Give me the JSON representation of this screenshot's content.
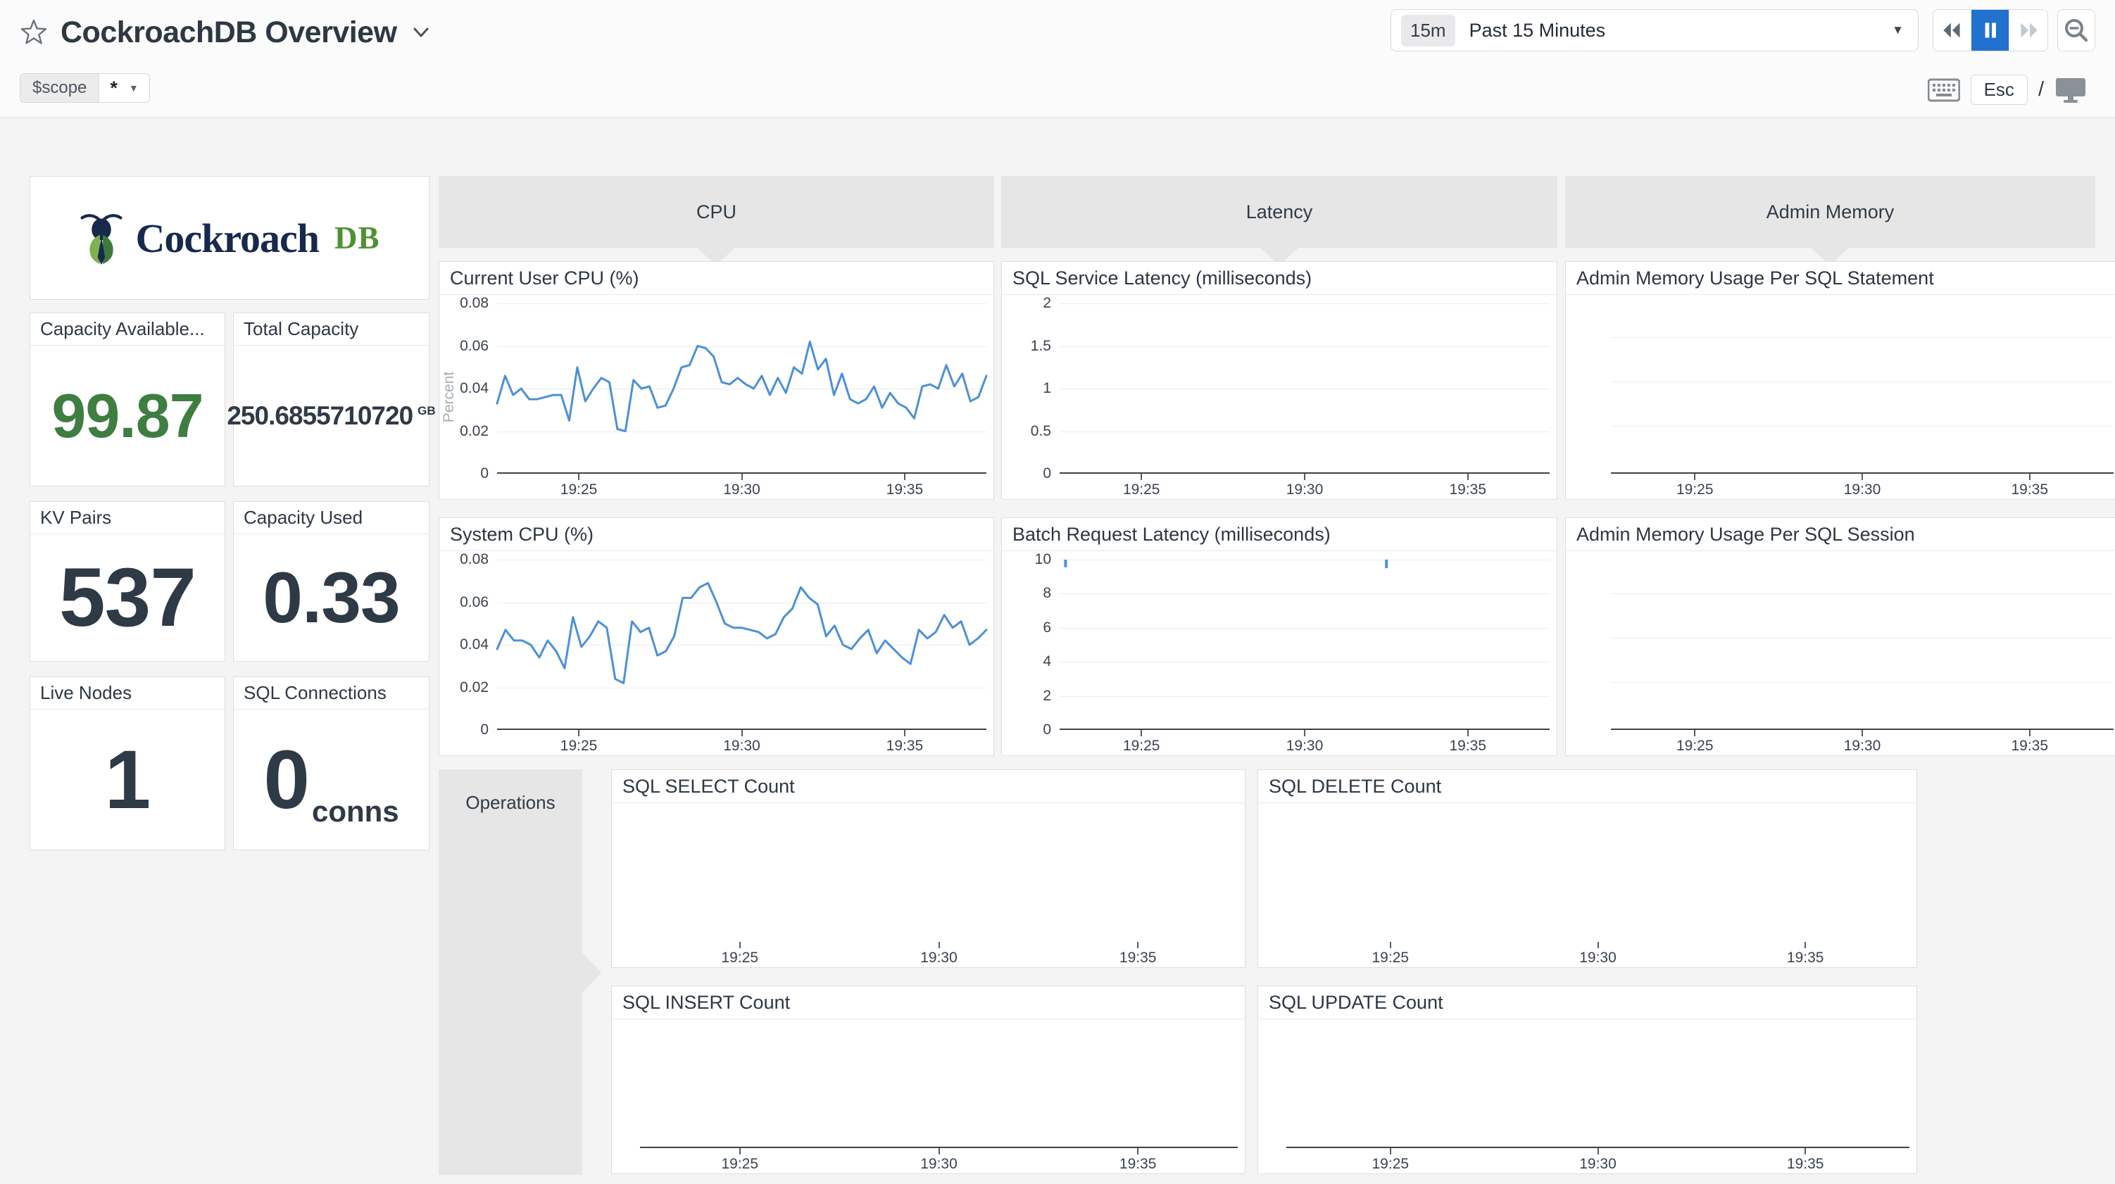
{
  "header": {
    "title": "CockroachDB Overview",
    "time_badge": "15m",
    "time_label": "Past 15 Minutes",
    "esc_label": "Esc",
    "slash": "/"
  },
  "scope": {
    "key": "$scope",
    "value": "*"
  },
  "logo": {
    "word": "Cockroach",
    "suffix": "DB"
  },
  "groups": {
    "cpu": "CPU",
    "latency": "Latency",
    "admin_memory": "Admin Memory",
    "operations": "Operations"
  },
  "stats": [
    {
      "label": "Capacity Available...",
      "value": "99.87",
      "unit": ""
    },
    {
      "label": "Total Capacity",
      "value": "250.6855710720",
      "unit": "GB"
    },
    {
      "label": "KV Pairs",
      "value": "537",
      "unit": ""
    },
    {
      "label": "Capacity Used",
      "value": "0.33",
      "unit": ""
    },
    {
      "label": "Live Nodes",
      "value": "1",
      "unit": ""
    },
    {
      "label": "SQL Connections",
      "value": "0",
      "unit": "conns"
    }
  ],
  "colors": {
    "accent_blue": "#2271cf",
    "line_blue": "#4d90d5",
    "value_green": "#3e7e41",
    "logo_green": "#4f9231",
    "logo_navy": "#172a4d",
    "header_gray": "#e6e6e6"
  },
  "icons": {
    "favorite": "star-outline",
    "title_caret": "chevron-down",
    "time_caret": "triangle-down",
    "rewind": "double-arrow-left",
    "pause": "pause-bars",
    "forward": "double-arrow-right",
    "zoom_out": "magnifier-minus",
    "keyboard_hint": "keyboard",
    "tv_mode": "monitor",
    "scope_caret": "triangle-down",
    "logo": "cockroach-bug"
  },
  "chart_data": [
    {
      "id": "current_user_cpu",
      "type": "line",
      "title": "Current User CPU (%)",
      "ylabel": "Percent",
      "gutter": 82,
      "ymax": 0.08,
      "yticks": [
        "0.08",
        "0.06",
        "0.04",
        "0.02",
        "0"
      ],
      "xticks": [
        "19:25",
        "19:30",
        "19:35"
      ],
      "xfracs": [
        0.167,
        0.5,
        0.833
      ],
      "values": [
        0.033,
        0.046,
        0.037,
        0.04,
        0.035,
        0.035,
        0.036,
        0.037,
        0.037,
        0.025,
        0.05,
        0.034,
        0.04,
        0.045,
        0.043,
        0.021,
        0.02,
        0.044,
        0.04,
        0.041,
        0.031,
        0.032,
        0.04,
        0.05,
        0.051,
        0.06,
        0.059,
        0.055,
        0.043,
        0.042,
        0.045,
        0.042,
        0.04,
        0.046,
        0.037,
        0.045,
        0.038,
        0.05,
        0.047,
        0.062,
        0.049,
        0.054,
        0.037,
        0.047,
        0.035,
        0.033,
        0.035,
        0.041,
        0.031,
        0.038,
        0.033,
        0.031,
        0.026,
        0.041,
        0.042,
        0.04,
        0.051,
        0.041,
        0.047,
        0.034,
        0.036,
        0.046
      ]
    },
    {
      "id": "system_cpu",
      "type": "line",
      "title": "System CPU (%)",
      "gutter": 82,
      "ymax": 0.08,
      "yticks": [
        "0.08",
        "0.06",
        "0.04",
        "0.02",
        "0"
      ],
      "xticks": [
        "19:25",
        "19:30",
        "19:35"
      ],
      "xfracs": [
        0.167,
        0.5,
        0.833
      ],
      "values": [
        0.038,
        0.047,
        0.042,
        0.042,
        0.04,
        0.034,
        0.042,
        0.037,
        0.029,
        0.053,
        0.039,
        0.044,
        0.051,
        0.048,
        0.024,
        0.022,
        0.051,
        0.046,
        0.048,
        0.035,
        0.037,
        0.044,
        0.062,
        0.062,
        0.067,
        0.069,
        0.06,
        0.05,
        0.048,
        0.048,
        0.047,
        0.046,
        0.043,
        0.045,
        0.053,
        0.057,
        0.067,
        0.062,
        0.059,
        0.044,
        0.049,
        0.04,
        0.038,
        0.043,
        0.047,
        0.036,
        0.042,
        0.038,
        0.034,
        0.031,
        0.047,
        0.043,
        0.046,
        0.054,
        0.048,
        0.051,
        0.04,
        0.043,
        0.047
      ]
    },
    {
      "id": "sql_service_latency",
      "type": "line",
      "title": "SQL Service Latency (milliseconds)",
      "gutter": 82,
      "ymax": 2,
      "yticks": [
        "2",
        "1.5",
        "1",
        "0.5",
        "0"
      ],
      "xticks": [
        "19:25",
        "19:30",
        "19:35"
      ],
      "xfracs": [
        0.167,
        0.5,
        0.833
      ],
      "values": []
    },
    {
      "id": "batch_request_latency",
      "type": "line",
      "title": "Batch Request Latency (milliseconds)",
      "gutter": 82,
      "ymax": 10,
      "yticks": [
        "10",
        "8",
        "6",
        "4",
        "2",
        "0"
      ],
      "xticks": [
        "19:25",
        "19:30",
        "19:35"
      ],
      "xfracs": [
        0.167,
        0.5,
        0.833
      ],
      "values": [],
      "spikes": [
        {
          "x": 0.012,
          "to": 0.045
        },
        {
          "x": 0.667,
          "to": 0.05
        }
      ]
    },
    {
      "id": "admin_memory_statement",
      "type": "line",
      "title": "Admin Memory Usage Per SQL Statement",
      "gutter": 64,
      "gridlines": [
        0.2,
        0.46,
        0.72
      ],
      "baseline": true,
      "xticks": [
        "19:25",
        "19:30",
        "19:35"
      ],
      "xfracs": [
        0.167,
        0.5,
        0.833
      ],
      "values": []
    },
    {
      "id": "admin_memory_session",
      "type": "line",
      "title": "Admin Memory Usage Per SQL Session",
      "gutter": 64,
      "gridlines": [
        0.2,
        0.46,
        0.72
      ],
      "baseline": true,
      "xticks": [
        "19:25",
        "19:30",
        "19:35"
      ],
      "xfracs": [
        0.167,
        0.5,
        0.833
      ],
      "values": []
    },
    {
      "id": "sql_select_count",
      "type": "line",
      "title": "SQL SELECT Count",
      "gutter": 40,
      "baseline": false,
      "xticks": [
        "19:25",
        "19:30",
        "19:35"
      ],
      "xfracs": [
        0.167,
        0.5,
        0.833
      ],
      "values": []
    },
    {
      "id": "sql_delete_count",
      "type": "line",
      "title": "SQL DELETE Count",
      "gutter": 40,
      "baseline": false,
      "xticks": [
        "19:25",
        "19:30",
        "19:35"
      ],
      "xfracs": [
        0.167,
        0.5,
        0.833
      ],
      "values": []
    },
    {
      "id": "sql_insert_count",
      "type": "line",
      "title": "SQL INSERT Count",
      "gutter": 40,
      "baseline": true,
      "xticks": [
        "19:25",
        "19:30",
        "19:35"
      ],
      "xfracs": [
        0.167,
        0.5,
        0.833
      ],
      "values": []
    },
    {
      "id": "sql_update_count",
      "type": "line",
      "title": "SQL UPDATE Count",
      "gutter": 40,
      "baseline": true,
      "xticks": [
        "19:25",
        "19:30",
        "19:35"
      ],
      "xfracs": [
        0.167,
        0.5,
        0.833
      ],
      "values": []
    }
  ]
}
